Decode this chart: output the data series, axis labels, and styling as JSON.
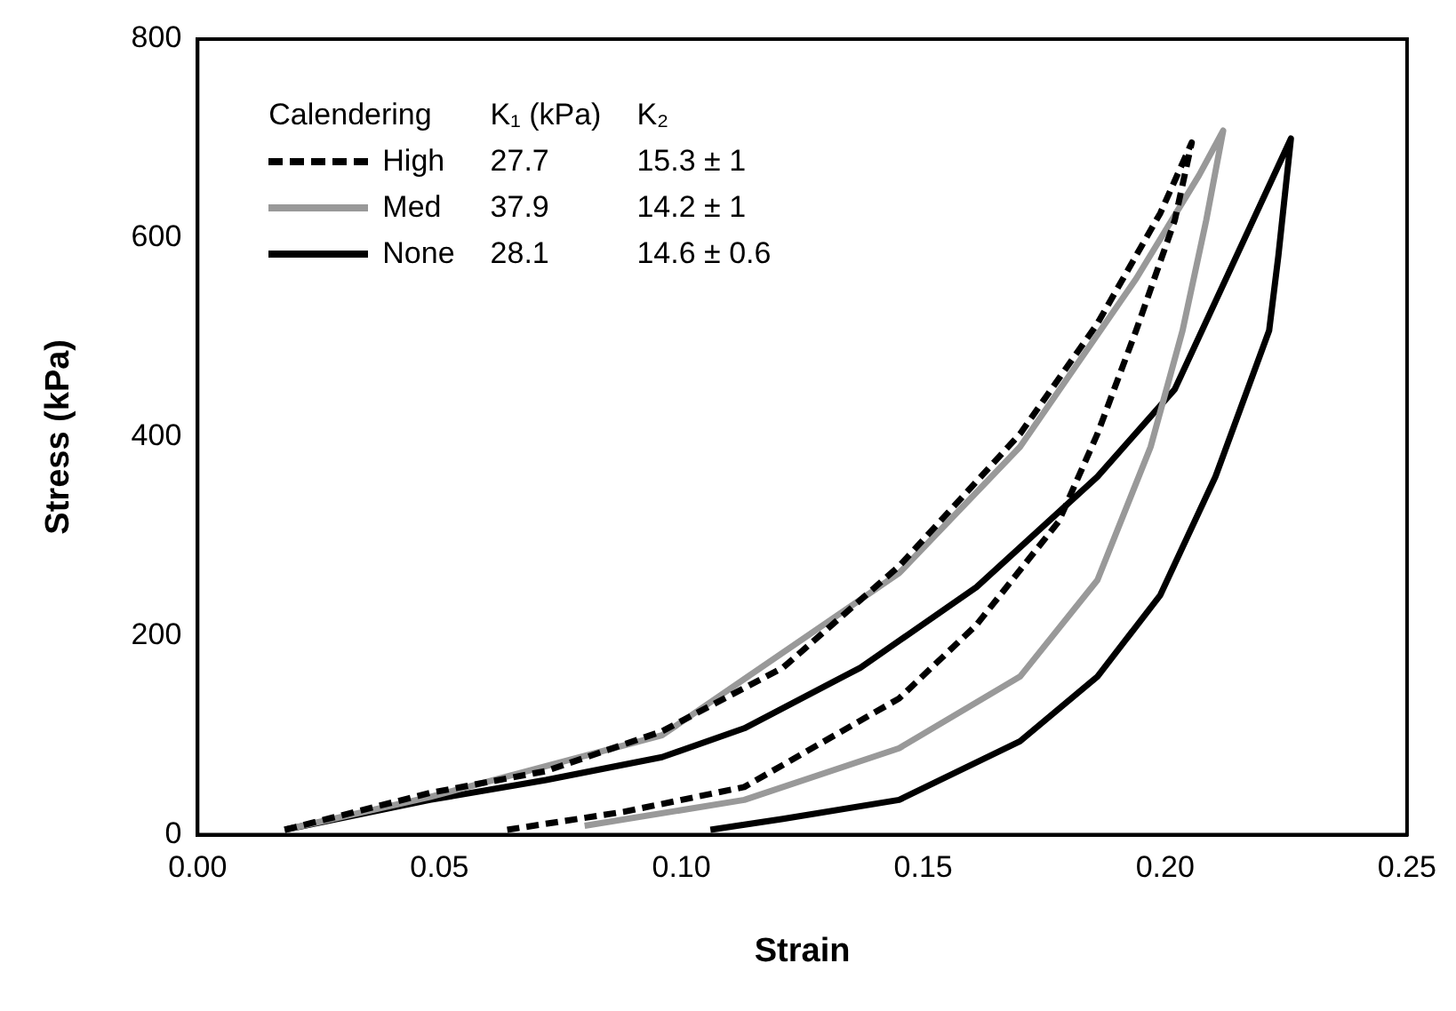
{
  "chart_data": {
    "type": "line",
    "xlabel": "Strain",
    "ylabel": "Stress (kPa)",
    "legend_title": "Calendering",
    "legend": "top left",
    "marker": "none",
    "grid": false,
    "xlim": [
      0,
      0.25
    ],
    "xticks": [
      {
        "value": 0,
        "label": "0.00"
      },
      {
        "value": 0.05,
        "label": "0.05"
      },
      {
        "value": 0.1,
        "label": "0.10"
      },
      {
        "value": 0.15,
        "label": "0.15"
      },
      {
        "value": 0.2,
        "label": "0.20"
      },
      {
        "value": 0.25,
        "label": "0.25"
      }
    ],
    "ylim": [
      0,
      800
    ],
    "yticks": [
      0,
      200,
      400,
      600,
      800
    ],
    "annotations": [
      "K₁ (kPa)",
      "K₂",
      "27.7",
      "15.3 ± 1",
      "37.9",
      "14.2 ± 1",
      "28.1",
      "14.6 ± 0.6"
    ],
    "series": [
      {
        "name": "High",
        "color": "#000000",
        "line_style": "dashed",
        "x": [
          0.018,
          0.048,
          0.072,
          0.096,
          0.121,
          0.145,
          0.17,
          0.186,
          0.199,
          0.2055,
          0.202,
          0.194,
          0.186,
          0.178,
          0.161,
          0.145,
          0.113,
          0.088,
          0.064
        ],
        "values": [
          5,
          42,
          64,
          104,
          168,
          270,
          403,
          514,
          625,
          696,
          618,
          507,
          403,
          315,
          211,
          137,
          48,
          23,
          5
        ]
      },
      {
        "name": "Med",
        "color": "#999999",
        "line_style": "solid",
        "x": [
          0.018,
          0.048,
          0.096,
          0.145,
          0.17,
          0.194,
          0.207,
          0.212,
          0.2085,
          0.2036,
          0.197,
          0.186,
          0.17,
          0.145,
          0.113,
          0.08
        ],
        "values": [
          5,
          38,
          100,
          263,
          390,
          559,
          663,
          708,
          618,
          507,
          390,
          256,
          159,
          87,
          35,
          9
        ]
      },
      {
        "name": "None",
        "color": "#000000",
        "line_style": "solid",
        "x": [
          0.018,
          0.048,
          0.072,
          0.096,
          0.113,
          0.137,
          0.161,
          0.186,
          0.202,
          0.226,
          0.2234,
          0.2215,
          0.2104,
          0.199,
          0.186,
          0.17,
          0.145,
          0.121,
          0.106
        ],
        "values": [
          5,
          35,
          55,
          78,
          107,
          168,
          249,
          360,
          448,
          700,
          582,
          507,
          360,
          241,
          159,
          94,
          35,
          16,
          5
        ]
      }
    ]
  }
}
